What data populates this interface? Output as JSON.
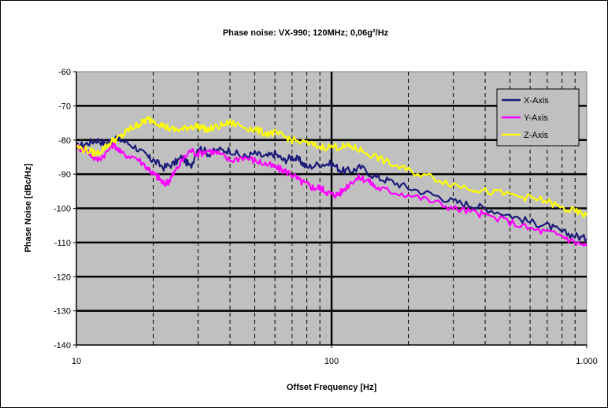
{
  "chart_data": {
    "type": "line",
    "title": "Phase noise: VX-990;          120MHz;   0,06g²/Hz",
    "xlabel": "Offset Frequency [Hz]",
    "ylabel": "Phase Noise [dBc/Hz]",
    "x_scale": "log",
    "xlim": [
      10,
      1000
    ],
    "ylim": [
      -140,
      -60
    ],
    "x_ticks": [
      "10",
      "100",
      "1.000"
    ],
    "y_ticks": [
      "-60",
      "-70",
      "-80",
      "-90",
      "-100",
      "-110",
      "-120",
      "-130",
      "-140"
    ],
    "grid": true,
    "legend_position": "top-right",
    "series": [
      {
        "name": "X-Axis",
        "color": "#1a1a7a",
        "x": [
          10,
          11,
          12,
          13,
          14,
          15,
          17,
          19,
          20,
          22,
          24,
          26,
          28,
          30,
          33,
          36,
          40,
          45,
          50,
          55,
          60,
          65,
          70,
          75,
          80,
          90,
          100,
          110,
          120,
          130,
          150,
          170,
          200,
          250,
          300,
          350,
          400,
          500,
          600,
          700,
          800,
          900,
          1000
        ],
        "y": [
          -82,
          -81,
          -80,
          -81,
          -80,
          -80,
          -82,
          -85,
          -86,
          -88,
          -87,
          -85,
          -88,
          -82,
          -84,
          -83,
          -83,
          -85,
          -84,
          -85,
          -84,
          -86,
          -85,
          -86,
          -88,
          -87,
          -87,
          -89,
          -89,
          -88,
          -91,
          -92,
          -94,
          -96,
          -98,
          -99,
          -100,
          -102,
          -104,
          -105,
          -107,
          -108,
          -109
        ]
      },
      {
        "name": "Y-Axis",
        "color": "#ff00ff",
        "x": [
          10,
          11,
          12,
          13,
          14,
          15,
          17,
          19,
          20,
          21,
          22,
          23,
          24,
          26,
          28,
          30,
          33,
          36,
          40,
          45,
          50,
          55,
          60,
          65,
          70,
          75,
          80,
          85,
          90,
          95,
          100,
          105,
          110,
          120,
          130,
          140,
          150,
          170,
          200,
          250,
          300,
          350,
          400,
          500,
          600,
          700,
          800,
          900,
          1000
        ],
        "y": [
          -82,
          -83,
          -86,
          -84,
          -81,
          -84,
          -85,
          -88,
          -90,
          -91,
          -93,
          -92,
          -90,
          -86,
          -83,
          -84,
          -83,
          -84,
          -86,
          -85,
          -86,
          -87,
          -88,
          -89,
          -90,
          -92,
          -93,
          -94,
          -94,
          -95,
          -96,
          -96,
          -95,
          -92,
          -91,
          -92,
          -94,
          -95,
          -96,
          -98,
          -100,
          -101,
          -102,
          -104,
          -106,
          -107,
          -108,
          -110,
          -111
        ]
      },
      {
        "name": "Z-Axis",
        "color": "#ffff00",
        "x": [
          10,
          11,
          12,
          13,
          14,
          15,
          16,
          17,
          18,
          19,
          20,
          22,
          24,
          26,
          28,
          30,
          33,
          36,
          40,
          45,
          50,
          55,
          60,
          65,
          70,
          80,
          90,
          100,
          110,
          120,
          130,
          150,
          170,
          200,
          250,
          300,
          350,
          400,
          500,
          600,
          700,
          800,
          900,
          1000
        ],
        "y": [
          -82,
          -83,
          -84,
          -82,
          -80,
          -79,
          -77,
          -76,
          -75,
          -74,
          -74,
          -76,
          -77,
          -77,
          -76,
          -76,
          -77,
          -76,
          -75,
          -76,
          -77,
          -78,
          -78,
          -79,
          -80,
          -81,
          -82,
          -82,
          -82,
          -82,
          -83,
          -85,
          -87,
          -89,
          -91,
          -93,
          -94,
          -95,
          -96,
          -97,
          -98,
          -100,
          -101,
          -102
        ]
      }
    ]
  }
}
